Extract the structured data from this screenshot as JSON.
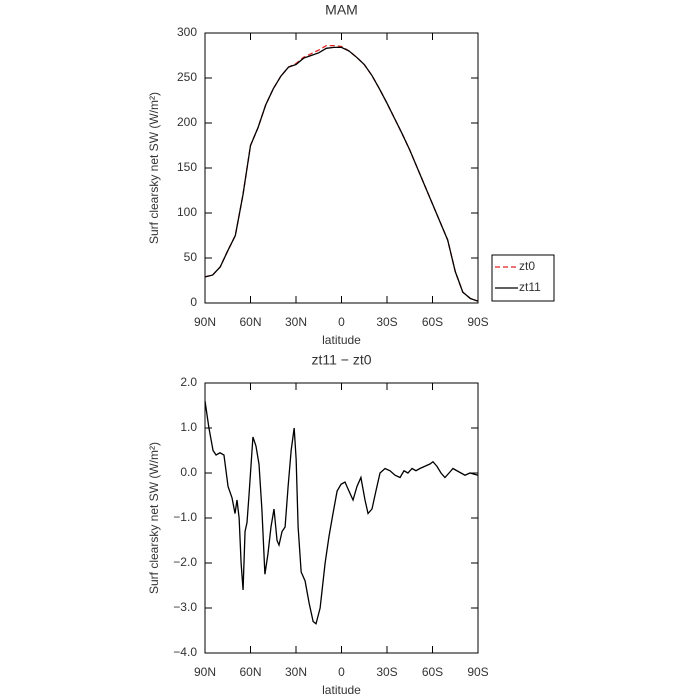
{
  "chart_data": [
    {
      "type": "line",
      "title": "MAM",
      "xlabel": "latitude",
      "ylabel": "Surf clearsky net SW (W/m²)",
      "x": [
        90,
        85,
        80,
        75,
        70,
        65,
        60,
        55,
        50,
        45,
        40,
        35,
        30,
        25,
        20,
        15,
        10,
        5,
        0,
        -5,
        -10,
        -15,
        -20,
        -25,
        -30,
        -35,
        -40,
        -45,
        -50,
        -55,
        -60,
        -65,
        -70,
        -75,
        -80,
        -85,
        -90
      ],
      "series": [
        {
          "name": "zt0",
          "color": "#e02020",
          "linestyle": "dashed",
          "values": [
            29,
            31,
            40,
            58,
            75,
            120,
            175,
            195,
            220,
            238,
            252,
            262,
            266,
            273,
            277,
            281,
            286,
            286,
            285,
            280,
            273,
            265,
            253,
            238,
            222,
            205,
            188,
            170,
            150,
            130,
            110,
            90,
            70,
            35,
            12,
            5,
            2
          ]
        },
        {
          "name": "zt11",
          "color": "#000000",
          "linestyle": "solid",
          "values": [
            29,
            31,
            40,
            58,
            75,
            120,
            175,
            195,
            220,
            238,
            252,
            262,
            265,
            272,
            275,
            278,
            283,
            284,
            284,
            280,
            273,
            265,
            253,
            238,
            222,
            205,
            188,
            170,
            150,
            130,
            110,
            90,
            70,
            35,
            12,
            5,
            2
          ]
        }
      ],
      "xlim": [
        90,
        -90
      ],
      "xticks": [
        {
          "value": 90,
          "label": "90N"
        },
        {
          "value": 60,
          "label": "60N"
        },
        {
          "value": 30,
          "label": "30N"
        },
        0,
        {
          "value": -30,
          "label": "30S"
        },
        {
          "value": -60,
          "label": "60S"
        },
        {
          "value": -90,
          "label": "90S"
        }
      ],
      "ylim": [
        0,
        300
      ],
      "yticks": [
        0,
        50,
        100,
        150,
        200,
        250,
        300
      ],
      "legend": "right"
    },
    {
      "type": "line",
      "title": "zt11 − zt0",
      "xlabel": "latitude",
      "ylabel": "Surf clearsky net SW (W/m²)",
      "x": [
        90,
        87.4,
        84.7,
        82.7,
        80.1,
        77.5,
        74.8,
        72.2,
        70.2,
        68.9,
        67.5,
        66.2,
        64.9,
        63.6,
        62.3,
        61.0,
        58.4,
        56.4,
        54.4,
        52.5,
        50.5,
        48.5,
        46.5,
        44.5,
        42.5,
        41.2,
        39.2,
        37.2,
        35.2,
        33.2,
        31.2,
        29.9,
        28.6,
        26.6,
        24.0,
        21.3,
        18.7,
        16.8,
        14.1,
        10.8,
        8.2,
        5.6,
        2.9,
        0.3,
        -2.3,
        -4.9,
        -7.6,
        -10.2,
        -12.8,
        -15.5,
        -17.5,
        -20.1,
        -22.7,
        -25.4,
        -28.7,
        -32.0,
        -35.3,
        -38.6,
        -41.2,
        -43.8,
        -46.5,
        -49.1,
        -51.7,
        -55.0,
        -58.3,
        -60.3,
        -62.9,
        -65.6,
        -68.2,
        -70.9,
        -73.5,
        -76.1,
        -78.8,
        -81.4,
        -84.7,
        -90
      ],
      "color": "#000000",
      "values": [
        1.6,
        1.0,
        0.5,
        0.4,
        0.45,
        0.4,
        -0.3,
        -0.55,
        -0.9,
        -0.6,
        -1.0,
        -2.0,
        -2.6,
        -1.3,
        -1.1,
        -0.5,
        0.8,
        0.6,
        0.2,
        -0.8,
        -2.25,
        -1.8,
        -1.2,
        -0.8,
        -1.5,
        -1.6,
        -1.3,
        -1.2,
        -0.3,
        0.5,
        1.0,
        0.3,
        -1.2,
        -2.2,
        -2.4,
        -2.9,
        -3.3,
        -3.35,
        -3.0,
        -2.0,
        -1.4,
        -0.9,
        -0.4,
        -0.25,
        -0.2,
        -0.4,
        -0.6,
        -0.3,
        -0.1,
        -0.6,
        -0.9,
        -0.8,
        -0.4,
        0.0,
        0.1,
        0.05,
        -0.05,
        -0.1,
        0.05,
        0.0,
        0.1,
        0.05,
        0.1,
        0.15,
        0.2,
        0.25,
        0.15,
        0.0,
        -0.1,
        0.0,
        0.1,
        0.05,
        0.0,
        -0.05,
        0.0,
        -0.05
      ],
      "xlim": [
        90,
        -90
      ],
      "xticks": [
        {
          "value": 90,
          "label": "90N"
        },
        {
          "value": 60,
          "label": "60N"
        },
        {
          "value": 30,
          "label": "30N"
        },
        0,
        {
          "value": -30,
          "label": "30S"
        },
        {
          "value": -60,
          "label": "60S"
        },
        {
          "value": -90,
          "label": "90S"
        }
      ],
      "ylim": [
        -4,
        2
      ],
      "yticks": [
        {
          "value": -4,
          "label": "−4.0"
        },
        {
          "value": -3,
          "label": "−3.0"
        },
        {
          "value": -2,
          "label": "−2.0"
        },
        {
          "value": -1,
          "label": "−1.0"
        },
        {
          "value": 0,
          "label": "0.0"
        },
        {
          "value": 1,
          "label": "1.0"
        },
        {
          "value": 2,
          "label": "2.0"
        }
      ]
    }
  ]
}
